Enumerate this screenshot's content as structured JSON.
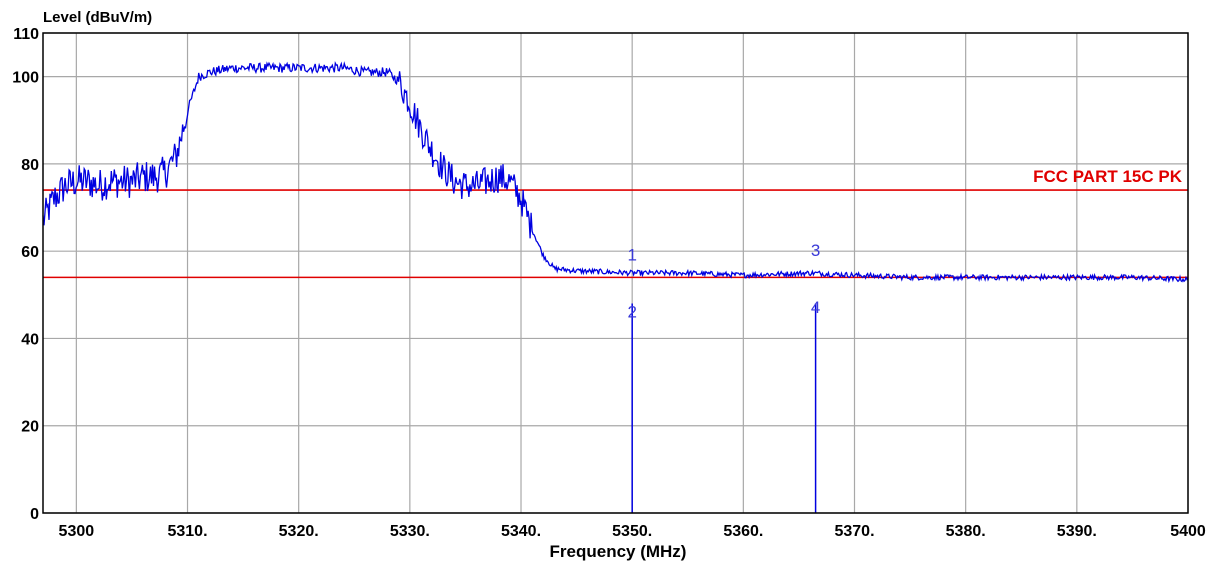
{
  "chart_data": {
    "type": "line",
    "title": "",
    "xlabel": "Frequency (MHz)",
    "ylabel": "Level (dBuV/m)",
    "xlim": [
      5297,
      5400
    ],
    "ylim": [
      0,
      110
    ],
    "grid": true,
    "x_ticks": [
      {
        "value": 5300,
        "label": "5300"
      },
      {
        "value": 5310,
        "label": "5310."
      },
      {
        "value": 5320,
        "label": "5320."
      },
      {
        "value": 5330,
        "label": "5330."
      },
      {
        "value": 5340,
        "label": "5340."
      },
      {
        "value": 5350,
        "label": "5350."
      },
      {
        "value": 5360,
        "label": "5360."
      },
      {
        "value": 5370,
        "label": "5370."
      },
      {
        "value": 5380,
        "label": "5380."
      },
      {
        "value": 5390,
        "label": "5390."
      },
      {
        "value": 5400,
        "label": "5400"
      }
    ],
    "y_ticks": [
      {
        "value": 0,
        "label": "0"
      },
      {
        "value": 20,
        "label": "20"
      },
      {
        "value": 40,
        "label": "40"
      },
      {
        "value": 60,
        "label": "60"
      },
      {
        "value": 80,
        "label": "80"
      },
      {
        "value": 100,
        "label": "100"
      },
      {
        "value": 110,
        "label": "110"
      }
    ],
    "limit_lines": [
      {
        "label": "FCC PART 15C  PK",
        "value": 74,
        "color": "#e00000"
      },
      {
        "label": "",
        "value": 54,
        "color": "#e00000"
      }
    ],
    "series": [
      {
        "color": "#0000e0",
        "x": [
          5297,
          5298,
          5299,
          5300,
          5301,
          5302,
          5303,
          5304,
          5305,
          5306,
          5307,
          5308,
          5309,
          5310,
          5311,
          5312,
          5314,
          5316,
          5318,
          5320,
          5322,
          5324,
          5326,
          5328,
          5329,
          5330,
          5331,
          5332,
          5333,
          5334,
          5335,
          5336,
          5337,
          5338,
          5339,
          5340,
          5341,
          5342,
          5343,
          5345,
          5350,
          5355,
          5360,
          5366,
          5370,
          5375,
          5380,
          5385,
          5390,
          5395,
          5400
        ],
        "y": [
          67,
          72,
          75,
          76,
          76,
          75,
          76,
          76,
          76,
          77,
          77,
          78,
          82,
          92,
          100,
          101,
          102,
          102,
          102,
          102,
          102,
          102,
          101,
          101,
          99,
          94,
          88,
          83,
          79,
          76,
          75,
          75,
          76,
          77,
          76,
          72,
          65,
          59,
          56,
          55.5,
          55,
          55,
          54.5,
          55,
          54.5,
          54,
          54,
          54,
          54,
          54,
          53.5
        ],
        "noise": 3
      }
    ],
    "markers": [
      {
        "label": "1",
        "x": 5350,
        "y": 57,
        "position": "above"
      },
      {
        "label": "2",
        "x": 5350,
        "y": 48,
        "position": "below"
      },
      {
        "label": "3",
        "x": 5366.5,
        "y": 58,
        "position": "above"
      },
      {
        "label": "4",
        "x": 5366.5,
        "y": 49,
        "position": "below"
      }
    ],
    "marker_lines": [
      5350,
      5366.5
    ],
    "colors": {
      "grid": "#a8a8a8",
      "axis": "#000000",
      "trace": "#0000e0",
      "marker": "#3a3ad8",
      "limit": "#e00000"
    }
  }
}
